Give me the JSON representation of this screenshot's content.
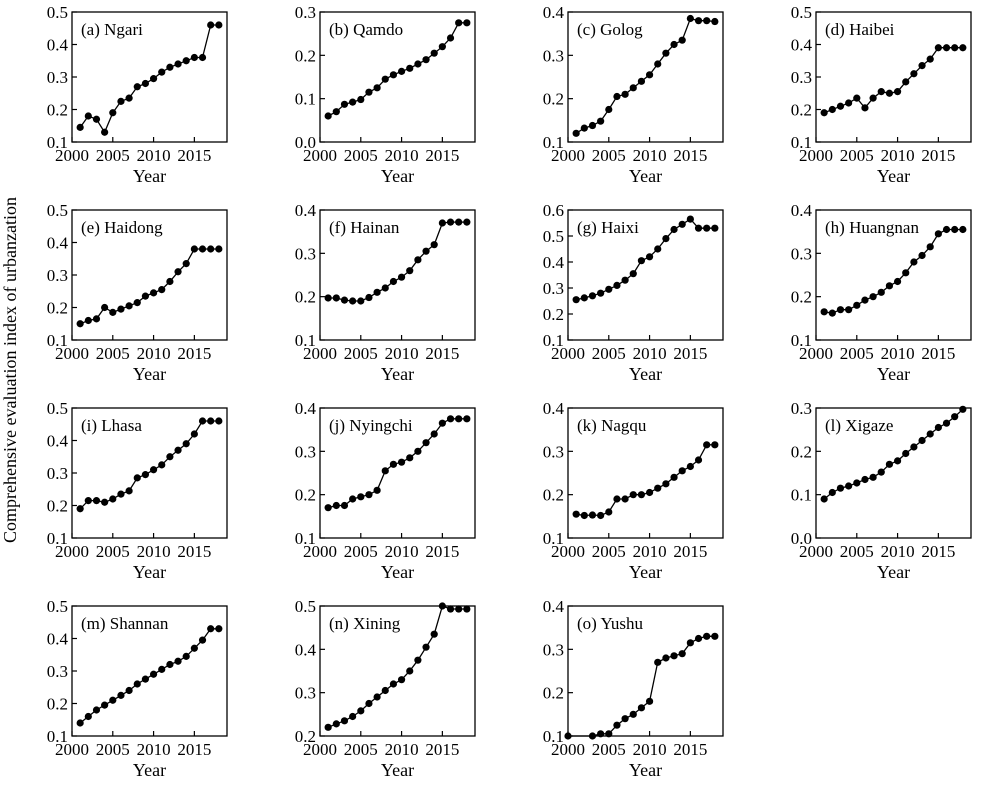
{
  "figure": {
    "ylabel": "Comprehensive evaluation index of urbanzation"
  },
  "chart_data": [
    {
      "type": "line",
      "title": "(a) Ngari",
      "xlabel": "Year",
      "ylabel": "",
      "xlim": [
        2000,
        2019
      ],
      "ylim": [
        0.1,
        0.5
      ],
      "xticks": [
        2000,
        2005,
        2010,
        2015
      ],
      "xtick_labels": [
        "2000",
        "2005",
        "2010",
        "2015"
      ],
      "yticks": [
        0.1,
        0.2,
        0.3,
        0.4,
        0.5
      ],
      "ytick_labels": [
        "0.1",
        "0.2",
        "0.3",
        "0.4",
        "0.5"
      ],
      "x": [
        2001,
        2002,
        2003,
        2004,
        2005,
        2006,
        2007,
        2008,
        2009,
        2010,
        2011,
        2012,
        2013,
        2014,
        2015,
        2016,
        2017,
        2018
      ],
      "y": [
        0.145,
        0.18,
        0.17,
        0.13,
        0.19,
        0.225,
        0.235,
        0.27,
        0.28,
        0.295,
        0.315,
        0.33,
        0.34,
        0.35,
        0.36,
        0.36,
        0.46,
        0.46
      ]
    },
    {
      "type": "line",
      "title": "(b) Qamdo",
      "xlabel": "Year",
      "ylabel": "",
      "xlim": [
        2000,
        2019
      ],
      "ylim": [
        0.0,
        0.3
      ],
      "xticks": [
        2000,
        2005,
        2010,
        2015
      ],
      "xtick_labels": [
        "2000",
        "2005",
        "2010",
        "2015"
      ],
      "yticks": [
        0.0,
        0.1,
        0.2,
        0.3
      ],
      "ytick_labels": [
        "0.0",
        "0.1",
        "0.2",
        "0.3"
      ],
      "x": [
        2001,
        2002,
        2003,
        2004,
        2005,
        2006,
        2007,
        2008,
        2009,
        2010,
        2011,
        2012,
        2013,
        2014,
        2015,
        2016,
        2017,
        2018
      ],
      "y": [
        0.06,
        0.07,
        0.087,
        0.092,
        0.098,
        0.115,
        0.125,
        0.145,
        0.155,
        0.163,
        0.17,
        0.18,
        0.19,
        0.205,
        0.22,
        0.24,
        0.275,
        0.275
      ]
    },
    {
      "type": "line",
      "title": "(c) Golog",
      "xlabel": "Year",
      "ylabel": "",
      "xlim": [
        2000,
        2019
      ],
      "ylim": [
        0.1,
        0.4
      ],
      "xticks": [
        2000,
        2005,
        2010,
        2015
      ],
      "xtick_labels": [
        "2000",
        "2005",
        "2010",
        "2015"
      ],
      "yticks": [
        0.1,
        0.2,
        0.3,
        0.4
      ],
      "ytick_labels": [
        "0.1",
        "0.2",
        "0.3",
        "0.4"
      ],
      "x": [
        2001,
        2002,
        2003,
        2004,
        2005,
        2006,
        2007,
        2008,
        2009,
        2010,
        2011,
        2012,
        2013,
        2014,
        2015,
        2016,
        2017,
        2018
      ],
      "y": [
        0.12,
        0.132,
        0.138,
        0.148,
        0.175,
        0.205,
        0.21,
        0.225,
        0.24,
        0.255,
        0.28,
        0.305,
        0.325,
        0.335,
        0.385,
        0.38,
        0.38,
        0.378
      ]
    },
    {
      "type": "line",
      "title": "(d) Haibei",
      "xlabel": "Year",
      "ylabel": "",
      "xlim": [
        2000,
        2019
      ],
      "ylim": [
        0.1,
        0.5
      ],
      "xticks": [
        2000,
        2005,
        2010,
        2015
      ],
      "xtick_labels": [
        "2000",
        "2005",
        "2010",
        "2015"
      ],
      "yticks": [
        0.1,
        0.2,
        0.3,
        0.4,
        0.5
      ],
      "ytick_labels": [
        "0.1",
        "0.2",
        "0.3",
        "0.4",
        "0.5"
      ],
      "x": [
        2001,
        2002,
        2003,
        2004,
        2005,
        2006,
        2007,
        2008,
        2009,
        2010,
        2011,
        2012,
        2013,
        2014,
        2015,
        2016,
        2017,
        2018
      ],
      "y": [
        0.19,
        0.2,
        0.21,
        0.22,
        0.235,
        0.205,
        0.235,
        0.255,
        0.25,
        0.255,
        0.285,
        0.31,
        0.335,
        0.355,
        0.39,
        0.39,
        0.39,
        0.39
      ]
    },
    {
      "type": "line",
      "title": "(e) Haidong",
      "xlabel": "Year",
      "ylabel": "",
      "xlim": [
        2000,
        2019
      ],
      "ylim": [
        0.1,
        0.5
      ],
      "xticks": [
        2000,
        2005,
        2010,
        2015
      ],
      "xtick_labels": [
        "2000",
        "2005",
        "2010",
        "2015"
      ],
      "yticks": [
        0.1,
        0.2,
        0.3,
        0.4,
        0.5
      ],
      "ytick_labels": [
        "0.1",
        "0.2",
        "0.3",
        "0.4",
        "0.5"
      ],
      "x": [
        2001,
        2002,
        2003,
        2004,
        2005,
        2006,
        2007,
        2008,
        2009,
        2010,
        2011,
        2012,
        2013,
        2014,
        2015,
        2016,
        2017,
        2018
      ],
      "y": [
        0.15,
        0.16,
        0.165,
        0.2,
        0.185,
        0.195,
        0.205,
        0.215,
        0.235,
        0.245,
        0.255,
        0.28,
        0.31,
        0.335,
        0.38,
        0.38,
        0.38,
        0.38
      ]
    },
    {
      "type": "line",
      "title": "(f) Hainan",
      "xlabel": "Year",
      "ylabel": "",
      "xlim": [
        2000,
        2019
      ],
      "ylim": [
        0.1,
        0.4
      ],
      "xticks": [
        2000,
        2005,
        2010,
        2015
      ],
      "xtick_labels": [
        "2000",
        "2005",
        "2010",
        "2015"
      ],
      "yticks": [
        0.1,
        0.2,
        0.3,
        0.4
      ],
      "ytick_labels": [
        "0.1",
        "0.2",
        "0.3",
        "0.4"
      ],
      "x": [
        2001,
        2002,
        2003,
        2004,
        2005,
        2006,
        2007,
        2008,
        2009,
        2010,
        2011,
        2012,
        2013,
        2014,
        2015,
        2016,
        2017,
        2018
      ],
      "y": [
        0.197,
        0.197,
        0.192,
        0.19,
        0.19,
        0.198,
        0.21,
        0.22,
        0.235,
        0.245,
        0.26,
        0.285,
        0.305,
        0.32,
        0.37,
        0.372,
        0.372,
        0.372
      ]
    },
    {
      "type": "line",
      "title": "(g) Haixi",
      "xlabel": "Year",
      "ylabel": "",
      "xlim": [
        2000,
        2019
      ],
      "ylim": [
        0.1,
        0.6
      ],
      "xticks": [
        2000,
        2005,
        2010,
        2015
      ],
      "xtick_labels": [
        "2000",
        "2005",
        "2010",
        "2015"
      ],
      "yticks": [
        0.1,
        0.2,
        0.3,
        0.4,
        0.5,
        0.6
      ],
      "ytick_labels": [
        "0.1",
        "0.2",
        "0.3",
        "0.4",
        "0.5",
        "0.6"
      ],
      "x": [
        2001,
        2002,
        2003,
        2004,
        2005,
        2006,
        2007,
        2008,
        2009,
        2010,
        2011,
        2012,
        2013,
        2014,
        2015,
        2016,
        2017,
        2018
      ],
      "y": [
        0.255,
        0.262,
        0.27,
        0.28,
        0.295,
        0.31,
        0.33,
        0.355,
        0.405,
        0.42,
        0.45,
        0.49,
        0.525,
        0.545,
        0.565,
        0.53,
        0.53,
        0.53
      ]
    },
    {
      "type": "line",
      "title": "(h) Huangnan",
      "xlabel": "Year",
      "ylabel": "",
      "xlim": [
        2000,
        2019
      ],
      "ylim": [
        0.1,
        0.4
      ],
      "xticks": [
        2000,
        2005,
        2010,
        2015
      ],
      "xtick_labels": [
        "2000",
        "2005",
        "2010",
        "2015"
      ],
      "yticks": [
        0.1,
        0.2,
        0.3,
        0.4
      ],
      "ytick_labels": [
        "0.1",
        "0.2",
        "0.3",
        "0.4"
      ],
      "x": [
        2001,
        2002,
        2003,
        2004,
        2005,
        2006,
        2007,
        2008,
        2009,
        2010,
        2011,
        2012,
        2013,
        2014,
        2015,
        2016,
        2017,
        2018
      ],
      "y": [
        0.165,
        0.162,
        0.17,
        0.17,
        0.18,
        0.192,
        0.2,
        0.21,
        0.225,
        0.235,
        0.255,
        0.28,
        0.295,
        0.315,
        0.345,
        0.355,
        0.355,
        0.355
      ]
    },
    {
      "type": "line",
      "title": "(i) Lhasa",
      "xlabel": "Year",
      "ylabel": "",
      "xlim": [
        2000,
        2019
      ],
      "ylim": [
        0.1,
        0.5
      ],
      "xticks": [
        2000,
        2005,
        2010,
        2015
      ],
      "xtick_labels": [
        "2000",
        "2005",
        "2010",
        "2015"
      ],
      "yticks": [
        0.1,
        0.2,
        0.3,
        0.4,
        0.5
      ],
      "ytick_labels": [
        "0.1",
        "0.2",
        "0.3",
        "0.4",
        "0.5"
      ],
      "x": [
        2001,
        2002,
        2003,
        2004,
        2005,
        2006,
        2007,
        2008,
        2009,
        2010,
        2011,
        2012,
        2013,
        2014,
        2015,
        2016,
        2017,
        2018
      ],
      "y": [
        0.19,
        0.215,
        0.215,
        0.21,
        0.22,
        0.235,
        0.245,
        0.285,
        0.295,
        0.31,
        0.325,
        0.35,
        0.37,
        0.39,
        0.42,
        0.46,
        0.46,
        0.46
      ]
    },
    {
      "type": "line",
      "title": "(j) Nyingchi",
      "xlabel": "Year",
      "ylabel": "",
      "xlim": [
        2000,
        2019
      ],
      "ylim": [
        0.1,
        0.4
      ],
      "xticks": [
        2000,
        2005,
        2010,
        2015
      ],
      "xtick_labels": [
        "2000",
        "2005",
        "2010",
        "2015"
      ],
      "yticks": [
        0.1,
        0.2,
        0.3,
        0.4
      ],
      "ytick_labels": [
        "0.1",
        "0.2",
        "0.3",
        "0.4"
      ],
      "x": [
        2001,
        2002,
        2003,
        2004,
        2005,
        2006,
        2007,
        2008,
        2009,
        2010,
        2011,
        2012,
        2013,
        2014,
        2015,
        2016,
        2017,
        2018
      ],
      "y": [
        0.17,
        0.175,
        0.175,
        0.19,
        0.195,
        0.2,
        0.21,
        0.255,
        0.27,
        0.275,
        0.285,
        0.3,
        0.32,
        0.34,
        0.365,
        0.375,
        0.375,
        0.375
      ]
    },
    {
      "type": "line",
      "title": "(k) Nagqu",
      "xlabel": "Year",
      "ylabel": "",
      "xlim": [
        2000,
        2019
      ],
      "ylim": [
        0.1,
        0.4
      ],
      "xticks": [
        2000,
        2005,
        2010,
        2015
      ],
      "xtick_labels": [
        "2000",
        "2005",
        "2010",
        "2015"
      ],
      "yticks": [
        0.1,
        0.2,
        0.3,
        0.4
      ],
      "ytick_labels": [
        "0.1",
        "0.2",
        "0.3",
        "0.4"
      ],
      "x": [
        2001,
        2002,
        2003,
        2004,
        2005,
        2006,
        2007,
        2008,
        2009,
        2010,
        2011,
        2012,
        2013,
        2014,
        2015,
        2016,
        2017,
        2018
      ],
      "y": [
        0.155,
        0.152,
        0.153,
        0.152,
        0.16,
        0.19,
        0.19,
        0.2,
        0.2,
        0.205,
        0.215,
        0.225,
        0.24,
        0.255,
        0.265,
        0.28,
        0.315,
        0.315
      ]
    },
    {
      "type": "line",
      "title": "(l) Xigaze",
      "xlabel": "Year",
      "ylabel": "",
      "xlim": [
        2000,
        2019
      ],
      "ylim": [
        0.0,
        0.3
      ],
      "xticks": [
        2000,
        2005,
        2010,
        2015
      ],
      "xtick_labels": [
        "2000",
        "2005",
        "2010",
        "2015"
      ],
      "yticks": [
        0.0,
        0.1,
        0.2,
        0.3
      ],
      "ytick_labels": [
        "0.0",
        "0.1",
        "0.2",
        "0.3"
      ],
      "x": [
        2001,
        2002,
        2003,
        2004,
        2005,
        2006,
        2007,
        2008,
        2009,
        2010,
        2011,
        2012,
        2013,
        2014,
        2015,
        2016,
        2017,
        2018
      ],
      "y": [
        0.09,
        0.105,
        0.115,
        0.12,
        0.127,
        0.135,
        0.14,
        0.152,
        0.17,
        0.178,
        0.195,
        0.21,
        0.225,
        0.24,
        0.255,
        0.265,
        0.28,
        0.297
      ]
    },
    {
      "type": "line",
      "title": "(m) Shannan",
      "xlabel": "Year",
      "ylabel": "",
      "xlim": [
        2000,
        2019
      ],
      "ylim": [
        0.1,
        0.5
      ],
      "xticks": [
        2000,
        2005,
        2010,
        2015
      ],
      "xtick_labels": [
        "2000",
        "2005",
        "2010",
        "2015"
      ],
      "yticks": [
        0.1,
        0.2,
        0.3,
        0.4,
        0.5
      ],
      "ytick_labels": [
        "0.1",
        "0.2",
        "0.3",
        "0.4",
        "0.5"
      ],
      "x": [
        2001,
        2002,
        2003,
        2004,
        2005,
        2006,
        2007,
        2008,
        2009,
        2010,
        2011,
        2012,
        2013,
        2014,
        2015,
        2016,
        2017,
        2018
      ],
      "y": [
        0.14,
        0.16,
        0.18,
        0.195,
        0.21,
        0.225,
        0.24,
        0.26,
        0.275,
        0.29,
        0.305,
        0.32,
        0.33,
        0.345,
        0.37,
        0.395,
        0.43,
        0.43
      ]
    },
    {
      "type": "line",
      "title": "(n) Xining",
      "xlabel": "Year",
      "ylabel": "",
      "xlim": [
        2000,
        2019
      ],
      "ylim": [
        0.2,
        0.5
      ],
      "xticks": [
        2000,
        2005,
        2010,
        2015
      ],
      "xtick_labels": [
        "2000",
        "2005",
        "2010",
        "2015"
      ],
      "yticks": [
        0.2,
        0.3,
        0.4,
        0.5
      ],
      "ytick_labels": [
        "0.2",
        "0.3",
        "0.4",
        "0.5"
      ],
      "x": [
        2001,
        2002,
        2003,
        2004,
        2005,
        2006,
        2007,
        2008,
        2009,
        2010,
        2011,
        2012,
        2013,
        2014,
        2015,
        2016,
        2017,
        2018
      ],
      "y": [
        0.22,
        0.228,
        0.235,
        0.245,
        0.258,
        0.275,
        0.29,
        0.305,
        0.32,
        0.33,
        0.35,
        0.375,
        0.405,
        0.435,
        0.5,
        0.493,
        0.493,
        0.493
      ]
    },
    {
      "type": "line",
      "title": "(o) Yushu",
      "xlabel": "Year",
      "ylabel": "",
      "xlim": [
        2000,
        2019
      ],
      "ylim": [
        0.1,
        0.4
      ],
      "xticks": [
        2000,
        2005,
        2010,
        2015
      ],
      "xtick_labels": [
        "2000",
        "2005",
        "2010",
        "2015"
      ],
      "yticks": [
        0.1,
        0.2,
        0.3,
        0.4
      ],
      "ytick_labels": [
        "0.1",
        "0.2",
        "0.3",
        "0.4"
      ],
      "x": [
        2000,
        2003,
        2004,
        2005,
        2006,
        2007,
        2008,
        2009,
        2010,
        2011,
        2012,
        2013,
        2014,
        2015,
        2016,
        2017,
        2018
      ],
      "y": [
        0.1,
        0.1,
        0.105,
        0.105,
        0.125,
        0.14,
        0.15,
        0.165,
        0.18,
        0.27,
        0.28,
        0.285,
        0.29,
        0.315,
        0.325,
        0.33,
        0.33
      ]
    }
  ]
}
